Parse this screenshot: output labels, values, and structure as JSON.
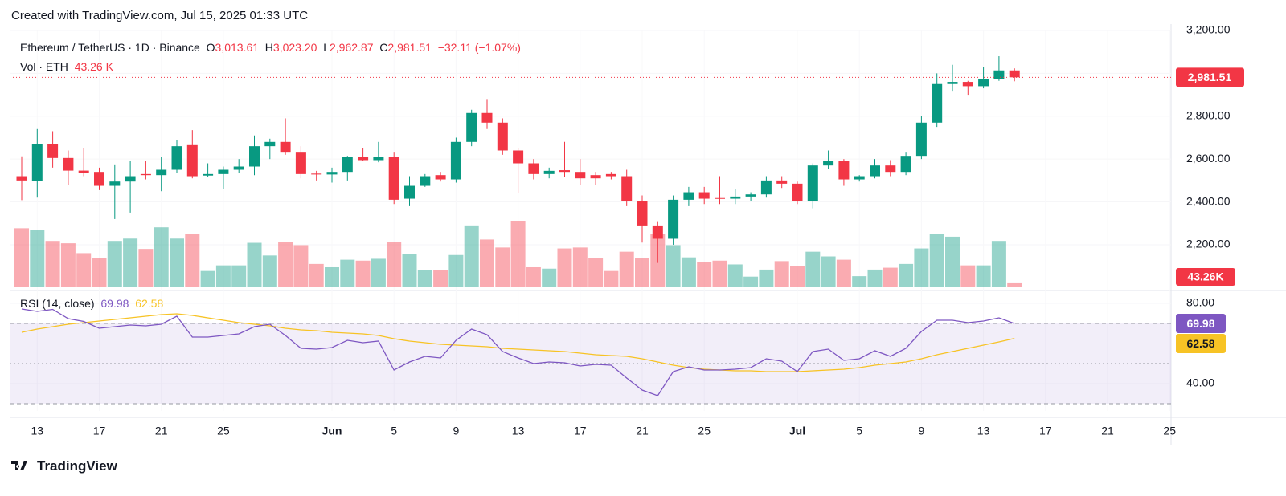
{
  "header": "Created with TradingView.com, Jul 15, 2025 01:33 UTC",
  "footer": "TradingView",
  "chart_data": {
    "type": "candlestick",
    "symbol": "Ethereum / TetherUS · 1D · Binance",
    "ohlc_prefixes": [
      "O",
      "H",
      "L",
      "C"
    ],
    "last_labels": [
      "3,013.61",
      "3,023.20",
      "2,962.87",
      "2,981.51"
    ],
    "change_label": "−32.11 (−1.07%)",
    "up_color": "#089981",
    "down_color": "#f23645",
    "x": [
      "2025-05-12",
      "2025-05-13",
      "2025-05-14",
      "2025-05-15",
      "2025-05-16",
      "2025-05-17",
      "2025-05-18",
      "2025-05-19",
      "2025-05-20",
      "2025-05-21",
      "2025-05-22",
      "2025-05-23",
      "2025-05-24",
      "2025-05-25",
      "2025-05-26",
      "2025-05-27",
      "2025-05-28",
      "2025-05-29",
      "2025-05-30",
      "2025-05-31",
      "2025-06-01",
      "2025-06-02",
      "2025-06-03",
      "2025-06-04",
      "2025-06-05",
      "2025-06-06",
      "2025-06-07",
      "2025-06-08",
      "2025-06-09",
      "2025-06-10",
      "2025-06-11",
      "2025-06-12",
      "2025-06-13",
      "2025-06-14",
      "2025-06-15",
      "2025-06-16",
      "2025-06-17",
      "2025-06-18",
      "2025-06-19",
      "2025-06-20",
      "2025-06-21",
      "2025-06-22",
      "2025-06-23",
      "2025-06-24",
      "2025-06-25",
      "2025-06-26",
      "2025-06-27",
      "2025-06-28",
      "2025-06-29",
      "2025-06-30",
      "2025-07-01",
      "2025-07-02",
      "2025-07-03",
      "2025-07-04",
      "2025-07-05",
      "2025-07-06",
      "2025-07-07",
      "2025-07-08",
      "2025-07-09",
      "2025-07-10",
      "2025-07-11",
      "2025-07-12",
      "2025-07-13",
      "2025-07-14",
      "2025-07-15"
    ],
    "open": [
      2520,
      2497,
      2670,
      2605,
      2546,
      2540,
      2475,
      2495,
      2530,
      2525,
      2550,
      2665,
      2523,
      2530,
      2550,
      2565,
      2660,
      2680,
      2630,
      2532,
      2528,
      2540,
      2610,
      2595,
      2610,
      2415,
      2475,
      2525,
      2505,
      2680,
      2815,
      2770,
      2640,
      2580,
      2530,
      2548,
      2540,
      2525,
      2530,
      2520,
      2405,
      2290,
      2228,
      2410,
      2445,
      2418,
      2415,
      2425,
      2435,
      2500,
      2485,
      2405,
      2570,
      2590,
      2505,
      2520,
      2570,
      2540,
      2615,
      2770,
      2950,
      2960,
      2940,
      2975,
      3013.61
    ],
    "high": [
      2613,
      2740,
      2730,
      2640,
      2650,
      2560,
      2575,
      2590,
      2590,
      2610,
      2690,
      2735,
      2580,
      2565,
      2600,
      2710,
      2695,
      2790,
      2660,
      2545,
      2560,
      2615,
      2650,
      2680,
      2630,
      2520,
      2530,
      2540,
      2700,
      2830,
      2880,
      2790,
      2650,
      2600,
      2560,
      2680,
      2600,
      2540,
      2540,
      2550,
      2430,
      2310,
      2430,
      2470,
      2470,
      2520,
      2460,
      2445,
      2520,
      2520,
      2495,
      2580,
      2640,
      2600,
      2525,
      2600,
      2595,
      2630,
      2800,
      3000,
      3040,
      2965,
      3030,
      3080,
      3023.2
    ],
    "low": [
      2408,
      2420,
      2560,
      2480,
      2520,
      2455,
      2320,
      2350,
      2505,
      2450,
      2535,
      2510,
      2515,
      2460,
      2535,
      2525,
      2600,
      2620,
      2510,
      2500,
      2490,
      2500,
      2590,
      2585,
      2390,
      2380,
      2470,
      2495,
      2490,
      2660,
      2740,
      2620,
      2440,
      2505,
      2510,
      2515,
      2480,
      2480,
      2505,
      2380,
      2210,
      2115,
      2200,
      2380,
      2390,
      2390,
      2390,
      2405,
      2420,
      2465,
      2390,
      2370,
      2555,
      2475,
      2495,
      2510,
      2520,
      2525,
      2600,
      2750,
      2915,
      2900,
      2930,
      2965,
      2962.87
    ],
    "close": [
      2500,
      2670,
      2605,
      2546,
      2535,
      2475,
      2495,
      2520,
      2525,
      2550,
      2660,
      2520,
      2530,
      2550,
      2565,
      2660,
      2680,
      2630,
      2530,
      2528,
      2540,
      2610,
      2595,
      2610,
      2410,
      2475,
      2520,
      2505,
      2680,
      2815,
      2770,
      2640,
      2580,
      2530,
      2545,
      2540,
      2510,
      2510,
      2520,
      2405,
      2290,
      2228,
      2410,
      2445,
      2415,
      2415,
      2425,
      2435,
      2500,
      2485,
      2405,
      2570,
      2590,
      2505,
      2520,
      2570,
      2540,
      2615,
      2770,
      2950,
      2960,
      2940,
      2975,
      3013.61,
      2981.51
    ],
    "ylim": [
      2005,
      3200
    ],
    "yticks": [
      {
        "value": 2200,
        "label": "2,200.00"
      },
      {
        "value": 2400,
        "label": "2,400.00"
      },
      {
        "value": 2600,
        "label": "2,600.00"
      },
      {
        "value": 2800,
        "label": "2,800.00"
      },
      {
        "value": 3000,
        "label": "3,000.00"
      },
      {
        "value": 3200,
        "label": "3,200.00"
      }
    ],
    "xticks": [
      {
        "value": "2025-05-13",
        "label": "13"
      },
      {
        "value": "2025-05-17",
        "label": "17"
      },
      {
        "value": "2025-05-21",
        "label": "21"
      },
      {
        "value": "2025-05-25",
        "label": "25"
      },
      {
        "value": "2025-06-01",
        "label": "Jun"
      },
      {
        "value": "2025-06-05",
        "label": "5"
      },
      {
        "value": "2025-06-09",
        "label": "9"
      },
      {
        "value": "2025-06-13",
        "label": "13"
      },
      {
        "value": "2025-06-17",
        "label": "17"
      },
      {
        "value": "2025-06-21",
        "label": "21"
      },
      {
        "value": "2025-06-25",
        "label": "25"
      },
      {
        "value": "2025-07-01",
        "label": "Jul"
      },
      {
        "value": "2025-07-05",
        "label": "5"
      },
      {
        "value": "2025-07-09",
        "label": "9"
      },
      {
        "value": "2025-07-13",
        "label": "13"
      },
      {
        "value": "2025-07-17",
        "label": "17"
      },
      {
        "value": "2025-07-21",
        "label": "21"
      },
      {
        "value": "2025-07-25",
        "label": "25"
      }
    ],
    "volume": {
      "name": "Vol · ETH",
      "legend_label": "43.26 K",
      "last_label": "43.26K",
      "values": [
        620,
        600,
        485,
        460,
        355,
        300,
        485,
        510,
        400,
        630,
        510,
        560,
        165,
        225,
        225,
        465,
        330,
        475,
        440,
        240,
        205,
        285,
        275,
        295,
        475,
        345,
        175,
        175,
        335,
        650,
        500,
        415,
        700,
        205,
        190,
        405,
        415,
        300,
        165,
        370,
        300,
        555,
        440,
        310,
        260,
        275,
        235,
        105,
        180,
        270,
        215,
        370,
        320,
        285,
        110,
        180,
        200,
        240,
        405,
        560,
        530,
        225,
        225,
        485,
        43.26
      ]
    },
    "rsi": {
      "name": "RSI (14, close)",
      "color": "#7e57c2",
      "ma_color": "#f7c325",
      "values": [
        77.2,
        76,
        77,
        72.4,
        71,
        67.6,
        68.4,
        69.2,
        68.8,
        69.6,
        73.6,
        63.2,
        63.2,
        64,
        64.8,
        68.4,
        69.6,
        64,
        57.6,
        57.2,
        58,
        61.6,
        60.4,
        61.2,
        46.8,
        50.8,
        53.6,
        52.8,
        61.6,
        67.2,
        64.4,
        56,
        52.8,
        50,
        50.8,
        50.4,
        48.8,
        49.6,
        49.2,
        42.8,
        36.8,
        34,
        46,
        48.4,
        46.8,
        46.8,
        47.2,
        48,
        52.4,
        51.2,
        46,
        56,
        57.2,
        51.6,
        52.4,
        56.4,
        53.6,
        57.6,
        66,
        71.6,
        71.6,
        70.4,
        71.2,
        72.8,
        69.98
      ],
      "ma_values": [
        65.6,
        67.2,
        68.4,
        69.6,
        70.4,
        71.2,
        72,
        72.8,
        73.6,
        74.4,
        74.8,
        74,
        72.8,
        71.6,
        70.4,
        69.6,
        68.8,
        67.6,
        66.8,
        66.4,
        65.6,
        65.2,
        64.8,
        64,
        62.4,
        61.2,
        60.4,
        59.6,
        59.2,
        58.8,
        58.4,
        57.6,
        57.2,
        56.8,
        56.4,
        56,
        55.2,
        54.4,
        54,
        53.6,
        52.4,
        50.8,
        49.2,
        48,
        47.2,
        46.8,
        46.4,
        46.4,
        46,
        46,
        46,
        46.4,
        46.8,
        47.2,
        48,
        49.2,
        50,
        50.8,
        52.4,
        54.4,
        56,
        57.6,
        59.2,
        60.8,
        62.58
      ],
      "ylim": [
        26.4,
        84.4
      ],
      "yticks": [
        {
          "value": 40,
          "label": "40.00"
        },
        {
          "value": 80,
          "label": "80.00"
        }
      ],
      "bands": [
        30,
        50,
        70
      ]
    }
  }
}
